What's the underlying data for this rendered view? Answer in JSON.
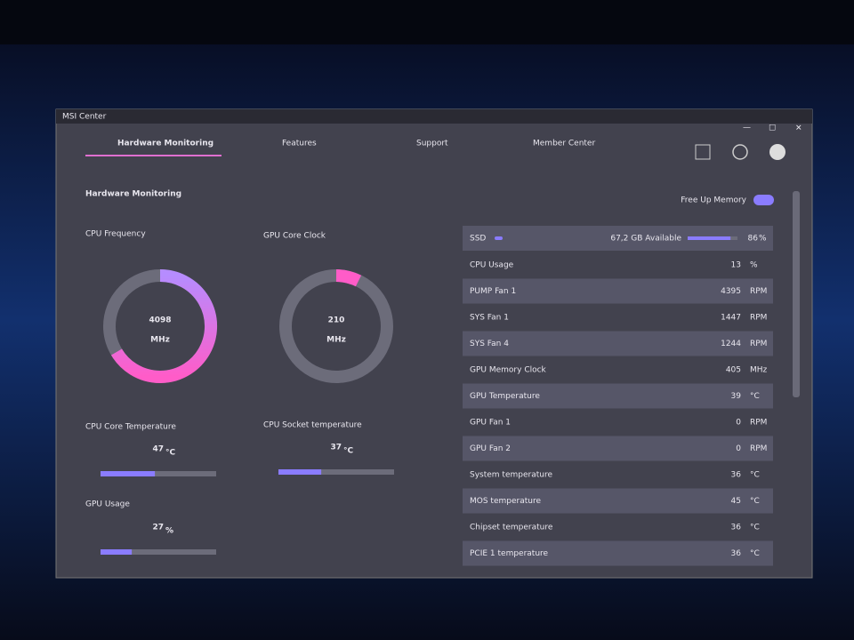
{
  "window_title": "MSI Center",
  "tabs": [
    "Hardware Monitoring",
    "Features",
    "Support",
    "Member Center"
  ],
  "heading": "Hardware Monitoring",
  "free_up_memory": "Free Up Memory",
  "gauges": [
    {
      "label": "CPU Frequency",
      "value": 4098,
      "unit": "MHz"
    },
    {
      "label": "GPU Core Clock",
      "value": 210,
      "unit": "MHz"
    }
  ],
  "meters": [
    {
      "label": "CPU Core Temperature",
      "value": 47,
      "unit": "°C"
    },
    {
      "label": "CPU Socket temperature",
      "value": 37,
      "unit": "°C"
    },
    {
      "label": "GPU Usage",
      "value": 27,
      "unit": "%"
    }
  ],
  "ssd": {
    "label": "SSD",
    "available": "67,2 GB Available",
    "value": 86,
    "unit": "%"
  },
  "stats": [
    {
      "name": "CPU Usage",
      "value": 13,
      "unit": "%"
    },
    {
      "name": "PUMP Fan 1",
      "value": 4395,
      "unit": "RPM"
    },
    {
      "name": "SYS Fan 1",
      "value": 1447,
      "unit": "RPM"
    },
    {
      "name": "SYS Fan 4",
      "value": 1244,
      "unit": "RPM"
    },
    {
      "name": "GPU Memory Clock",
      "value": 405,
      "unit": "MHz"
    },
    {
      "name": "GPU Temperature",
      "value": 39,
      "unit": "°C"
    },
    {
      "name": "GPU Fan 1",
      "value": 0,
      "unit": "RPM"
    },
    {
      "name": "GPU Fan 2",
      "value": 0,
      "unit": "RPM"
    },
    {
      "name": "System temperature",
      "value": 36,
      "unit": "°C"
    },
    {
      "name": "MOS temperature",
      "value": 45,
      "unit": "°C"
    },
    {
      "name": "Chipset temperature",
      "value": 36,
      "unit": "°C"
    },
    {
      "name": "PCIE 1 temperature",
      "value": 36,
      "unit": "°C"
    }
  ]
}
